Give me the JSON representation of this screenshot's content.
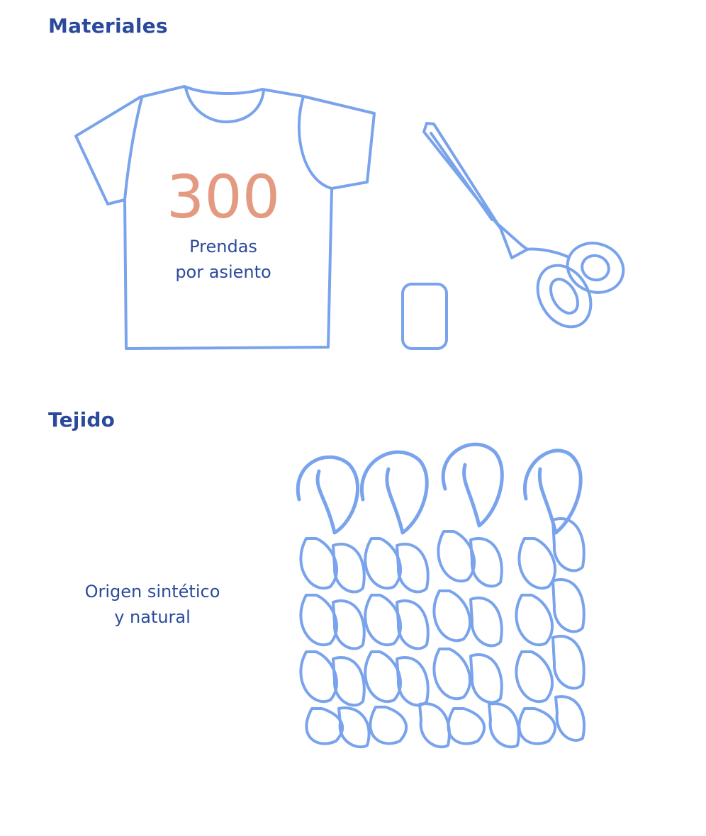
{
  "colors": {
    "heading": "#2b4a9b",
    "text": "#2b4a9b",
    "accent": "#e39a80",
    "illustration": "#79a3ec"
  },
  "materiales": {
    "title": "Materiales",
    "shirt": {
      "number": "300",
      "caption_line1": "Prendas",
      "caption_line2": "por asiento"
    },
    "icons": [
      "t-shirt-icon",
      "scissors-icon",
      "patch-icon"
    ]
  },
  "tejido": {
    "title": "Tejido",
    "caption_line1": "Origen sintético",
    "caption_line2": "y natural",
    "icons": [
      "knit-fabric-icon"
    ]
  }
}
